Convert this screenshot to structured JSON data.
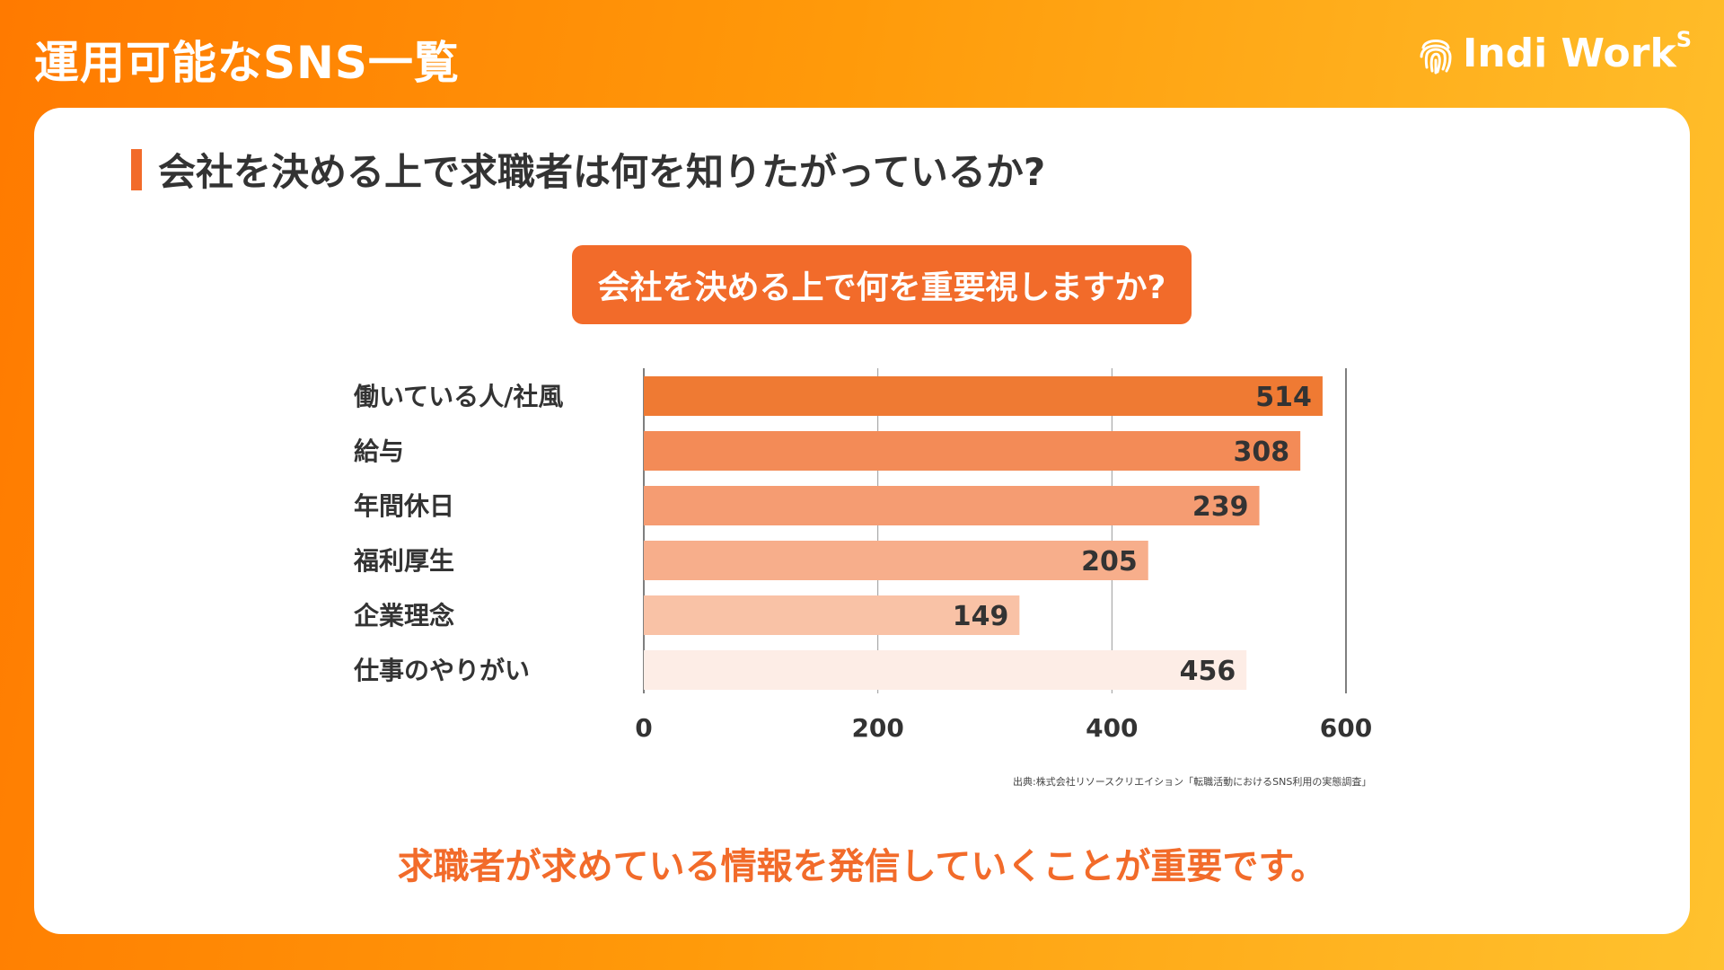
{
  "header": {
    "title": "運用可能なSNS一覧",
    "logo_text": "Indi Work",
    "logo_sup": "S"
  },
  "slide": {
    "heading": "会社を決める上で求職者は何を知りたがっているか?",
    "question": "会社を決める上で何を重要視しますか?",
    "source": "出典:株式会社リソースクリエイション「転職活動におけるSNS利用の実態調査」",
    "conclusion": "求職者が求めている情報を発信していくことが重要です。"
  },
  "colors": {
    "accent": "#F26B2A",
    "bar_colors": [
      "#EF7A33",
      "#F38B57",
      "#F59C72",
      "#F7AE8B",
      "#F9C2A6",
      "#FDEDE6"
    ]
  },
  "chart_data": {
    "type": "bar",
    "orientation": "horizontal",
    "categories": [
      "働いている人/社風",
      "給与",
      "年間休日",
      "福利厚生",
      "企業理念",
      "仕事のやりがい"
    ],
    "values": [
      514,
      308,
      239,
      205,
      149,
      456
    ],
    "bar_extent_values": [
      580,
      561,
      526,
      431,
      321,
      515
    ],
    "xlim": [
      0,
      600
    ],
    "xticks": [
      "0",
      "200",
      "400",
      "600"
    ],
    "grid": true,
    "legend": "none"
  }
}
